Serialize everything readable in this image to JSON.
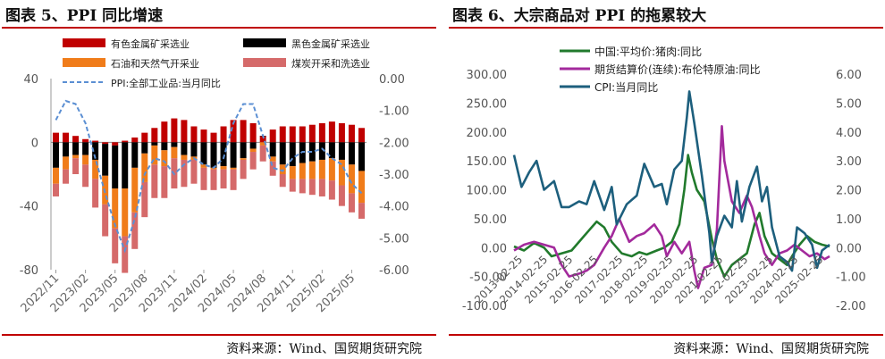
{
  "left": {
    "title": "图表 5、PPI 同比增速",
    "source": "资料来源：Wind、国贸期货研究院",
    "colors": {
      "nonferrous": "#c00000",
      "ferrous": "#000000",
      "oilgas": "#f07c1a",
      "coal": "#d56a6a",
      "ppi": "#5b8fd3",
      "accent": "#c00000"
    },
    "chart_data": {
      "type": "bar",
      "legend": [
        "有色金属矿采选业",
        "黑色金属矿采选业",
        "石油和天然气开采业",
        "煤炭开采和洗选业",
        "PPI:全部工业品:当月同比"
      ],
      "y_left": {
        "ticks": [
          "40",
          "0",
          "-40",
          "-80"
        ],
        "range": [
          -80,
          40
        ]
      },
      "y_right": {
        "ticks": [
          "0.00",
          "-1.00",
          "-2.00",
          "-3.00",
          "-4.00",
          "-5.00",
          "-6.00"
        ],
        "range": [
          -6,
          0
        ]
      },
      "x_ticks": [
        "2022/11",
        "2023/02",
        "2023/05",
        "2023/08",
        "2023/11",
        "2024/02",
        "2024/05",
        "2024/08",
        "2024/11",
        "2025/02",
        "2025/05"
      ],
      "categories": [
        "2022/11",
        "2022/12",
        "2023/01",
        "2023/02",
        "2023/03",
        "2023/04",
        "2023/05",
        "2023/06",
        "2023/07",
        "2023/08",
        "2023/09",
        "2023/10",
        "2023/11",
        "2023/12",
        "2024/01",
        "2024/02",
        "2024/03",
        "2024/04",
        "2024/05",
        "2024/06",
        "2024/07",
        "2024/08",
        "2024/09",
        "2024/10",
        "2024/11",
        "2024/12",
        "2025/01",
        "2025/02",
        "2025/03",
        "2025/04",
        "2025/05",
        "2025/06"
      ],
      "series": [
        {
          "name": "有色金属矿采选业",
          "values": [
            6,
            6,
            4,
            2,
            1,
            -1,
            -2,
            1,
            3,
            6,
            9,
            13,
            15,
            14,
            10,
            8,
            6,
            10,
            14,
            14,
            12,
            4,
            8,
            10,
            10,
            10,
            11,
            12,
            13,
            12,
            11,
            9
          ]
        },
        {
          "name": "黑色金属矿采选业",
          "values": [
            -16,
            -9,
            -8,
            -8,
            -11,
            -20,
            -27,
            -29,
            -16,
            -7,
            -2,
            -5,
            -3,
            -8,
            -9,
            -14,
            -16,
            -15,
            -16,
            -10,
            -4,
            0,
            -9,
            -14,
            -15,
            -13,
            -12,
            -11,
            -10,
            -11,
            -14,
            -18
          ]
        },
        {
          "name": "石油和天然气开采业",
          "values": [
            -10,
            -8,
            -2,
            -6,
            -12,
            -18,
            -25,
            -30,
            -28,
            -18,
            -12,
            -10,
            -7,
            -3,
            -2,
            -2,
            -1,
            -2,
            -1,
            -1,
            -2,
            -2,
            -3,
            -6,
            -8,
            -10,
            -11,
            -12,
            -14,
            -16,
            -18,
            -20
          ]
        },
        {
          "name": "煤炭开采和洗选业",
          "values": [
            -8,
            -9,
            -10,
            -14,
            -18,
            -20,
            -22,
            -23,
            -23,
            -22,
            -21,
            -20,
            -19,
            -17,
            -15,
            -14,
            -13,
            -12,
            -13,
            -12,
            -11,
            -10,
            -9,
            -8,
            -8,
            -9,
            -10,
            -11,
            -12,
            -13,
            -12,
            -10
          ]
        }
      ],
      "ppi": [
        -1.3,
        -0.7,
        -0.8,
        -1.4,
        -2.5,
        -3.6,
        -4.6,
        -5.4,
        -4.4,
        -3.0,
        -2.5,
        -2.6,
        -3.0,
        -2.7,
        -2.5,
        -2.7,
        -2.8,
        -2.5,
        -1.4,
        -0.8,
        -0.8,
        -1.8,
        -2.8,
        -2.9,
        -2.5,
        -2.3,
        -2.3,
        -2.2,
        -2.5,
        -2.7,
        -3.3,
        -3.6
      ]
    }
  },
  "right": {
    "title": "图表 6、大宗商品对 PPI 的拖累较大",
    "source": "资料来源：Wind、国贸期货研究院",
    "colors": {
      "pork": "#217a2c",
      "brent": "#a32a9c",
      "cpi": "#1d5f7d",
      "accent": "#c00000"
    },
    "chart_data": {
      "type": "line",
      "legend": [
        "中国:平均价:猪肉:同比",
        "期货结算价(连续):布伦特原油:同比",
        "CPI:当月同比"
      ],
      "y_left": {
        "ticks": [
          "300.00",
          "250.00",
          "200.00",
          "150.00",
          "100.00",
          "50.00",
          "0.00",
          "-50.00",
          "-100.00"
        ],
        "range": [
          -100,
          300
        ]
      },
      "y_right": {
        "ticks": [
          "6.00",
          "5.00",
          "4.00",
          "3.00",
          "2.00",
          "1.00",
          "0.00",
          "-1.00",
          "-2.00"
        ],
        "range": [
          -2,
          6
        ]
      },
      "x_ticks": [
        "2013-02-25",
        "2014-02-25",
        "2015-02-25",
        "2016-02-25",
        "2017-02-25",
        "2018-02-25",
        "2019-02-25",
        "2020-02-25",
        "2021-02-25",
        "2022-02-25",
        "2023-02-25",
        "2024-02-25",
        "2025-02-25"
      ],
      "x_range": [
        2013.0,
        2025.6
      ],
      "series": [
        {
          "name": "中国:平均价:猪肉:同比",
          "axis": "left",
          "points": [
            [
              2013.0,
              2
            ],
            [
              2013.4,
              -5
            ],
            [
              2013.8,
              8
            ],
            [
              2014.2,
              0
            ],
            [
              2014.5,
              -15
            ],
            [
              2014.9,
              -10
            ],
            [
              2015.3,
              -5
            ],
            [
              2015.7,
              15
            ],
            [
              2016.0,
              30
            ],
            [
              2016.3,
              45
            ],
            [
              2016.6,
              35
            ],
            [
              2016.9,
              10
            ],
            [
              2017.3,
              -10
            ],
            [
              2017.7,
              -15
            ],
            [
              2018.0,
              -8
            ],
            [
              2018.3,
              -12
            ],
            [
              2018.7,
              -5
            ],
            [
              2019.0,
              0
            ],
            [
              2019.3,
              10
            ],
            [
              2019.6,
              40
            ],
            [
              2019.8,
              100
            ],
            [
              2019.95,
              160
            ],
            [
              2020.1,
              130
            ],
            [
              2020.3,
              100
            ],
            [
              2020.6,
              80
            ],
            [
              2020.9,
              15
            ],
            [
              2021.1,
              -20
            ],
            [
              2021.4,
              -50
            ],
            [
              2021.7,
              -30
            ],
            [
              2022.0,
              -20
            ],
            [
              2022.3,
              -10
            ],
            [
              2022.6,
              40
            ],
            [
              2022.8,
              60
            ],
            [
              2023.0,
              20
            ],
            [
              2023.3,
              -10
            ],
            [
              2023.6,
              -20
            ],
            [
              2023.9,
              -30
            ],
            [
              2024.1,
              -15
            ],
            [
              2024.4,
              5
            ],
            [
              2024.7,
              20
            ],
            [
              2025.0,
              10
            ],
            [
              2025.3,
              5
            ],
            [
              2025.6,
              2
            ]
          ]
        },
        {
          "name": "期货结算价(连续):布伦特原油:同比",
          "axis": "left",
          "points": [
            [
              2013.0,
              -5
            ],
            [
              2013.4,
              5
            ],
            [
              2013.8,
              10
            ],
            [
              2014.2,
              5
            ],
            [
              2014.6,
              0
            ],
            [
              2014.9,
              -30
            ],
            [
              2015.2,
              -50
            ],
            [
              2015.6,
              -45
            ],
            [
              2015.9,
              -40
            ],
            [
              2016.2,
              -30
            ],
            [
              2016.6,
              0
            ],
            [
              2016.9,
              20
            ],
            [
              2017.2,
              50
            ],
            [
              2017.6,
              10
            ],
            [
              2017.9,
              20
            ],
            [
              2018.2,
              25
            ],
            [
              2018.6,
              40
            ],
            [
              2018.9,
              20
            ],
            [
              2019.1,
              -15
            ],
            [
              2019.4,
              10
            ],
            [
              2019.7,
              -10
            ],
            [
              2020.0,
              10
            ],
            [
              2020.2,
              -40
            ],
            [
              2020.35,
              -70
            ],
            [
              2020.6,
              -35
            ],
            [
              2020.9,
              -30
            ],
            [
              2021.1,
              30
            ],
            [
              2021.3,
              210
            ],
            [
              2021.4,
              150
            ],
            [
              2021.7,
              80
            ],
            [
              2022.0,
              60
            ],
            [
              2022.3,
              90
            ],
            [
              2022.5,
              70
            ],
            [
              2022.8,
              20
            ],
            [
              2023.0,
              -10
            ],
            [
              2023.3,
              -30
            ],
            [
              2023.6,
              -10
            ],
            [
              2023.9,
              -5
            ],
            [
              2024.2,
              5
            ],
            [
              2024.5,
              -5
            ],
            [
              2024.8,
              -15
            ],
            [
              2025.1,
              -10
            ],
            [
              2025.4,
              -20
            ],
            [
              2025.6,
              -15
            ]
          ]
        },
        {
          "name": "CPI:当月同比",
          "axis": "right",
          "points": [
            [
              2013.0,
              3.2
            ],
            [
              2013.3,
              2.1
            ],
            [
              2013.6,
              2.6
            ],
            [
              2013.9,
              3.0
            ],
            [
              2014.2,
              2.0
            ],
            [
              2014.6,
              2.3
            ],
            [
              2014.9,
              1.4
            ],
            [
              2015.2,
              1.4
            ],
            [
              2015.6,
              1.6
            ],
            [
              2015.9,
              1.5
            ],
            [
              2016.2,
              2.3
            ],
            [
              2016.6,
              1.3
            ],
            [
              2016.9,
              2.1
            ],
            [
              2017.1,
              0.8
            ],
            [
              2017.5,
              1.5
            ],
            [
              2017.9,
              1.8
            ],
            [
              2018.2,
              2.9
            ],
            [
              2018.6,
              2.1
            ],
            [
              2018.9,
              2.2
            ],
            [
              2019.1,
              1.5
            ],
            [
              2019.4,
              2.7
            ],
            [
              2019.7,
              3.0
            ],
            [
              2019.9,
              4.5
            ],
            [
              2020.0,
              5.4
            ],
            [
              2020.2,
              4.3
            ],
            [
              2020.5,
              2.5
            ],
            [
              2020.8,
              0.5
            ],
            [
              2020.9,
              -0.5
            ],
            [
              2021.1,
              0.4
            ],
            [
              2021.4,
              1.1
            ],
            [
              2021.7,
              0.7
            ],
            [
              2021.9,
              2.3
            ],
            [
              2022.1,
              0.9
            ],
            [
              2022.4,
              2.1
            ],
            [
              2022.7,
              2.8
            ],
            [
              2022.9,
              1.6
            ],
            [
              2023.1,
              2.1
            ],
            [
              2023.3,
              0.7
            ],
            [
              2023.6,
              -0.3
            ],
            [
              2023.9,
              -0.5
            ],
            [
              2024.1,
              -0.8
            ],
            [
              2024.3,
              0.7
            ],
            [
              2024.6,
              0.5
            ],
            [
              2024.9,
              0.1
            ],
            [
              2025.1,
              -0.7
            ],
            [
              2025.3,
              -0.1
            ],
            [
              2025.6,
              0.1
            ]
          ]
        }
      ]
    }
  }
}
